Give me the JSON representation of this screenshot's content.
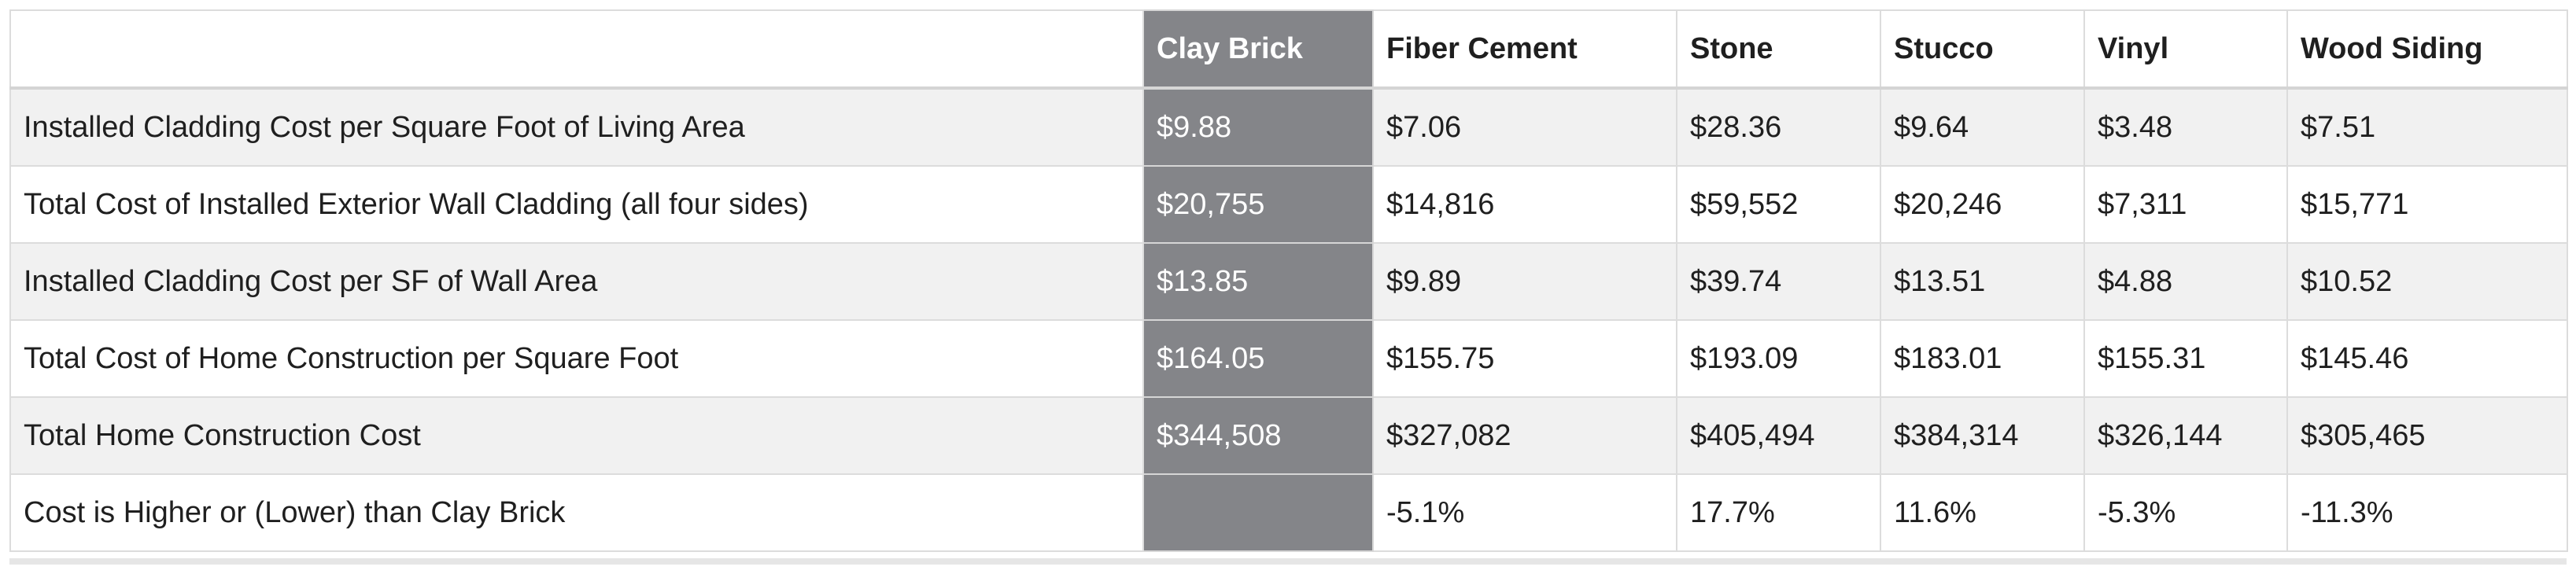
{
  "table": {
    "columns": [
      "",
      "Clay Brick",
      "Fiber Cement",
      "Stone",
      "Stucco",
      "Vinyl",
      "Wood Siding"
    ],
    "highlight_column_color": "#848589",
    "rows": [
      {
        "label": "Installed Cladding Cost per Square Foot of Living Area",
        "values": [
          "$9.88",
          "$7.06",
          "$28.36",
          "$9.64",
          "$3.48",
          "$7.51"
        ]
      },
      {
        "label": "Total Cost of Installed Exterior Wall Cladding (all four sides)",
        "values": [
          "$20,755",
          "$14,816",
          "$59,552",
          "$20,246",
          "$7,311",
          "$15,771"
        ]
      },
      {
        "label": "Installed Cladding Cost per SF of Wall Area",
        "values": [
          "$13.85",
          "$9.89",
          "$39.74",
          "$13.51",
          "$4.88",
          "$10.52"
        ]
      },
      {
        "label": "Total Cost of Home Construction per Square Foot",
        "values": [
          "$164.05",
          "$155.75",
          "$193.09",
          "$183.01",
          "$155.31",
          "$145.46"
        ]
      },
      {
        "label": "Total Home Construction Cost",
        "values": [
          "$344,508",
          "$327,082",
          "$405,494",
          "$384,314",
          "$326,144",
          "$305,465"
        ]
      },
      {
        "label": "Cost is Higher or (Lower) than Clay Brick",
        "values": [
          "",
          "-5.1%",
          "17.7%",
          "11.6%",
          "-5.3%",
          "-11.3%"
        ]
      }
    ]
  }
}
